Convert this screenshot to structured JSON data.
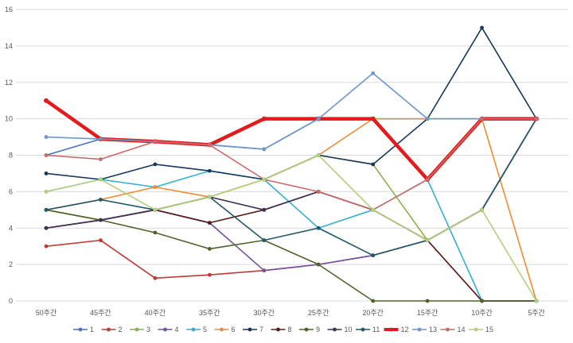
{
  "chart_data": {
    "type": "line",
    "title": "",
    "xlabel": "",
    "ylabel": "",
    "categories": [
      "50주간",
      "45주간",
      "40주간",
      "35주간",
      "30주간",
      "25주간",
      "20주간",
      "15주간",
      "10주간",
      "5주간"
    ],
    "ylim": [
      0,
      16
    ],
    "ytick_step": 2,
    "yticks": [
      "0",
      "2",
      "4",
      "6",
      "8",
      "10",
      "12",
      "14",
      "16"
    ],
    "grid": true,
    "legend_position": "bottom",
    "series": [
      {
        "name": "1",
        "color": "#4472c4",
        "values": [
          8,
          8.89,
          8.75,
          8.57,
          8.33,
          10,
          10,
          10,
          10,
          10
        ]
      },
      {
        "name": "2",
        "color": "#be3a34",
        "values": [
          3,
          3.33,
          1.25,
          1.43,
          1.67,
          2,
          2.5,
          3.33,
          0,
          0
        ]
      },
      {
        "name": "3",
        "color": "#8cb148",
        "values": [
          5,
          4.44,
          5,
          5.71,
          6.67,
          8,
          7.5,
          3.33,
          5,
          10
        ]
      },
      {
        "name": "4",
        "color": "#7451a3",
        "values": [
          4,
          4.44,
          5,
          4.29,
          1.67,
          2,
          2.5,
          3.33,
          5,
          10
        ]
      },
      {
        "name": "5",
        "color": "#33b0d0",
        "values": [
          6,
          6.67,
          6.25,
          7.14,
          6.67,
          4,
          5,
          6.67,
          0,
          0
        ]
      },
      {
        "name": "6",
        "color": "#f08b33",
        "values": [
          5,
          5.56,
          6.25,
          5.71,
          6.67,
          8,
          10,
          10,
          10,
          0
        ]
      },
      {
        "name": "7",
        "color": "#17375e",
        "values": [
          7,
          6.67,
          7.5,
          7.14,
          6.67,
          8,
          7.5,
          10,
          15,
          10
        ]
      },
      {
        "name": "8",
        "color": "#561b1b",
        "values": [
          4,
          4.44,
          5,
          4.29,
          5,
          6,
          5,
          3.33,
          0,
          0
        ]
      },
      {
        "name": "9",
        "color": "#4f6228",
        "values": [
          5,
          4.44,
          3.75,
          2.86,
          3.33,
          2,
          0,
          0,
          0,
          0
        ]
      },
      {
        "name": "10",
        "color": "#3f3151",
        "values": [
          4,
          4.44,
          5,
          5.71,
          5,
          6,
          5,
          3.33,
          5,
          10
        ]
      },
      {
        "name": "11",
        "color": "#215968",
        "values": [
          5,
          5.56,
          5,
          5.71,
          3.33,
          4,
          2.5,
          3.33,
          5,
          10
        ]
      },
      {
        "name": "12",
        "color": "#e41a1c",
        "values": [
          11,
          8.89,
          8.75,
          8.57,
          10,
          10,
          10,
          6.67,
          10,
          10
        ]
      },
      {
        "name": "13",
        "color": "#6c97c9",
        "values": [
          9,
          8.89,
          8.75,
          8.57,
          8.33,
          10,
          12.5,
          10,
          10,
          10
        ]
      },
      {
        "name": "14",
        "color": "#cc6a6a",
        "values": [
          8,
          7.78,
          8.75,
          8.57,
          6.67,
          6,
          5,
          6.67,
          10,
          10
        ]
      },
      {
        "name": "15",
        "color": "#b5cf7a",
        "values": [
          6,
          6.67,
          5,
          5.71,
          6.67,
          8,
          5,
          3.33,
          5,
          0
        ]
      }
    ]
  }
}
